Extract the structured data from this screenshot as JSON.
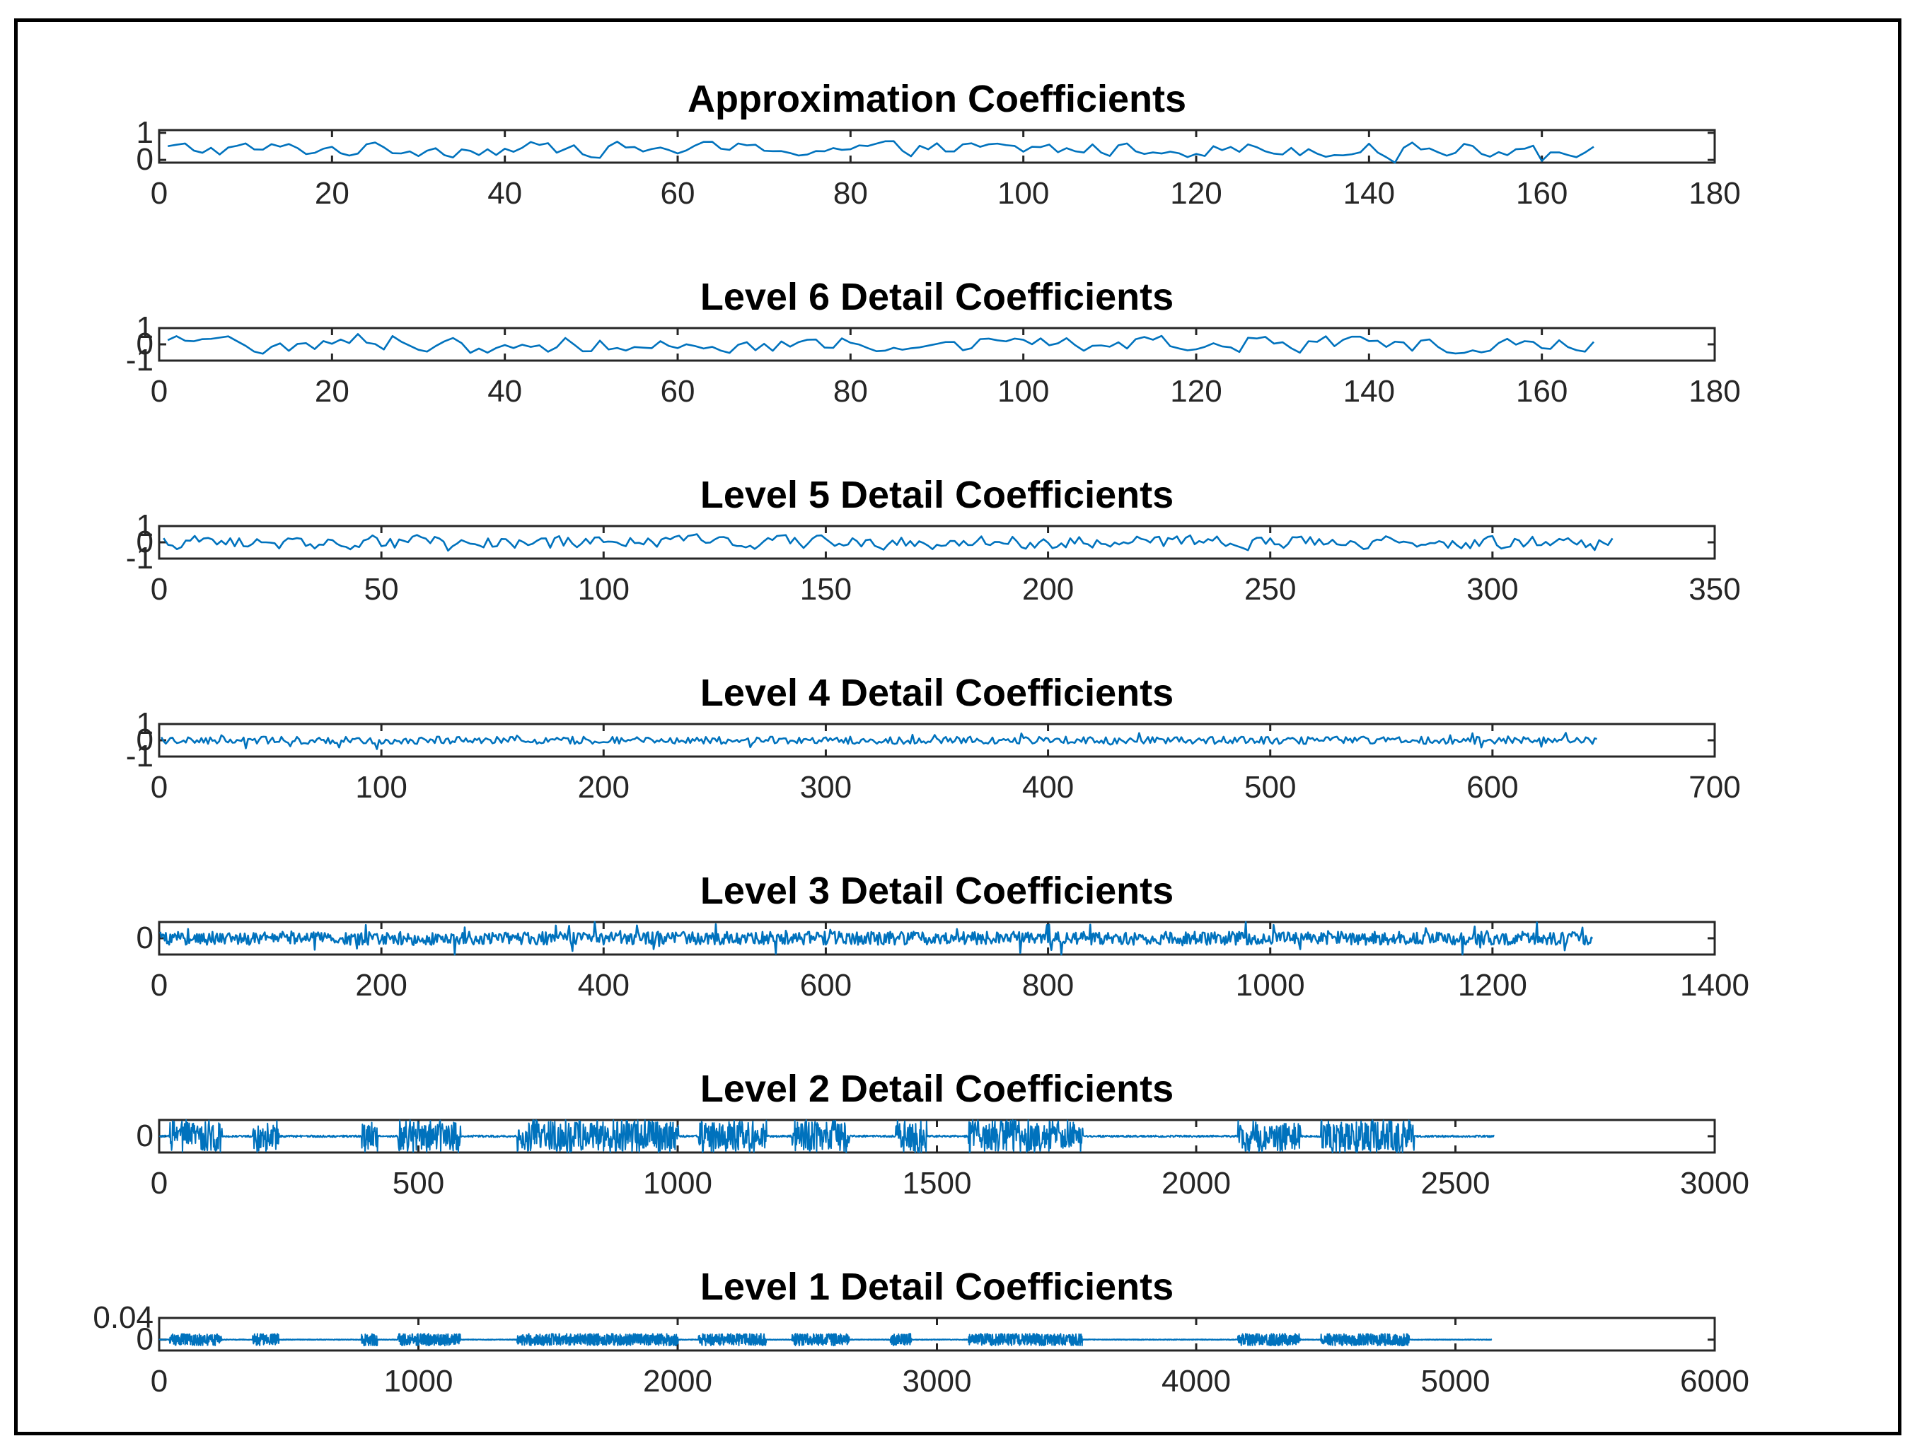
{
  "figure": {
    "line_color": "#0072BD",
    "axes_color": "#262626",
    "background": "#ffffff"
  },
  "chart_data": [
    {
      "type": "line",
      "title": "Approximation Coefficients",
      "xlabel": "",
      "ylabel": "",
      "xlim": [
        0,
        180
      ],
      "xticks": [
        "0",
        "20",
        "40",
        "60",
        "80",
        "100",
        "120",
        "140",
        "160",
        "180"
      ],
      "ylim": [
        -0.1,
        1.1
      ],
      "ytick_values": [
        0,
        1
      ],
      "yticks": [
        "0",
        "1"
      ],
      "n_points": 166,
      "amplitude": 0.38,
      "offset": 0.4,
      "style": "smooth",
      "grid": false
    },
    {
      "type": "line",
      "title": "Level 6 Detail Coefficients",
      "xlabel": "",
      "ylabel": "",
      "xlim": [
        0,
        180
      ],
      "xticks": [
        "0",
        "20",
        "40",
        "60",
        "80",
        "100",
        "120",
        "140",
        "160",
        "180"
      ],
      "ylim": [
        -1,
        1
      ],
      "ytick_values": [
        -1,
        0,
        1
      ],
      "yticks": [
        "-1",
        "0",
        "1"
      ],
      "n_points": 166,
      "amplitude": 0.7,
      "offset": 0,
      "style": "smooth",
      "grid": false
    },
    {
      "type": "line",
      "title": "Level 5 Detail Coefficients",
      "xlabel": "",
      "ylabel": "",
      "xlim": [
        0,
        350
      ],
      "xticks": [
        "0",
        "50",
        "100",
        "150",
        "200",
        "250",
        "300",
        "350"
      ],
      "ylim": [
        -1,
        1
      ],
      "ytick_values": [
        -1,
        0,
        1
      ],
      "yticks": [
        "-1",
        "0",
        "1"
      ],
      "n_points": 327,
      "amplitude": 0.55,
      "offset": 0,
      "style": "smooth",
      "grid": false
    },
    {
      "type": "line",
      "title": "Level 4 Detail Coefficients",
      "xlabel": "",
      "ylabel": "",
      "xlim": [
        0,
        700
      ],
      "xticks": [
        "0",
        "100",
        "200",
        "300",
        "400",
        "500",
        "600",
        "700"
      ],
      "ylim": [
        -1,
        1
      ],
      "ytick_values": [
        -1,
        0,
        1
      ],
      "yticks": [
        "-1",
        "0",
        "1"
      ],
      "n_points": 647,
      "amplitude": 0.5,
      "offset": 0,
      "style": "noisy",
      "grid": false
    },
    {
      "type": "line",
      "title": "Level 3 Detail Coefficients",
      "xlabel": "",
      "ylabel": "",
      "xlim": [
        0,
        1400
      ],
      "xticks": [
        "0",
        "200",
        "400",
        "600",
        "800",
        "1000",
        "1200",
        "1400"
      ],
      "ylim": [
        -0.5,
        0.5
      ],
      "ytick_values": [
        0
      ],
      "yticks": [
        "0"
      ],
      "n_points": 1290,
      "amplitude": 0.45,
      "offset": 0,
      "style": "noisy",
      "grid": false
    },
    {
      "type": "line",
      "title": "Level 2 Detail Coefficients",
      "xlabel": "",
      "ylabel": "",
      "xlim": [
        0,
        3000
      ],
      "xticks": [
        "0",
        "500",
        "1000",
        "1500",
        "2000",
        "2500",
        "3000"
      ],
      "ylim": [
        -0.5,
        0.5
      ],
      "ytick_values": [
        0
      ],
      "yticks": [
        "0"
      ],
      "n_points": 2575,
      "amplitude": 0.5,
      "offset": 0,
      "style": "bursty",
      "bursts": [
        [
          20,
          120
        ],
        [
          180,
          230
        ],
        [
          390,
          420
        ],
        [
          460,
          580
        ],
        [
          690,
          1000
        ],
        [
          1040,
          1170
        ],
        [
          1220,
          1330
        ],
        [
          1420,
          1480
        ],
        [
          1560,
          1780
        ],
        [
          2080,
          2200
        ],
        [
          2240,
          2420
        ]
      ],
      "grid": false
    },
    {
      "type": "line",
      "title": "Level 1 Detail Coefficients",
      "xlabel": "",
      "ylabel": "",
      "xlim": [
        0,
        6000
      ],
      "xticks": [
        "0",
        "1000",
        "2000",
        "3000",
        "4000",
        "5000",
        "6000"
      ],
      "ylim": [
        -0.02,
        0.04
      ],
      "ytick_values": [
        0,
        0.04
      ],
      "yticks": [
        "0",
        "0.04"
      ],
      "n_points": 5140,
      "amplitude": 0.011,
      "offset": 0,
      "style": "bursty",
      "bursts": [
        [
          40,
          240
        ],
        [
          360,
          460
        ],
        [
          780,
          840
        ],
        [
          920,
          1160
        ],
        [
          1380,
          2000
        ],
        [
          2080,
          2340
        ],
        [
          2440,
          2660
        ],
        [
          2820,
          2900
        ],
        [
          3120,
          3560
        ],
        [
          4160,
          4400
        ],
        [
          4480,
          4820
        ]
      ],
      "grid": false
    }
  ]
}
